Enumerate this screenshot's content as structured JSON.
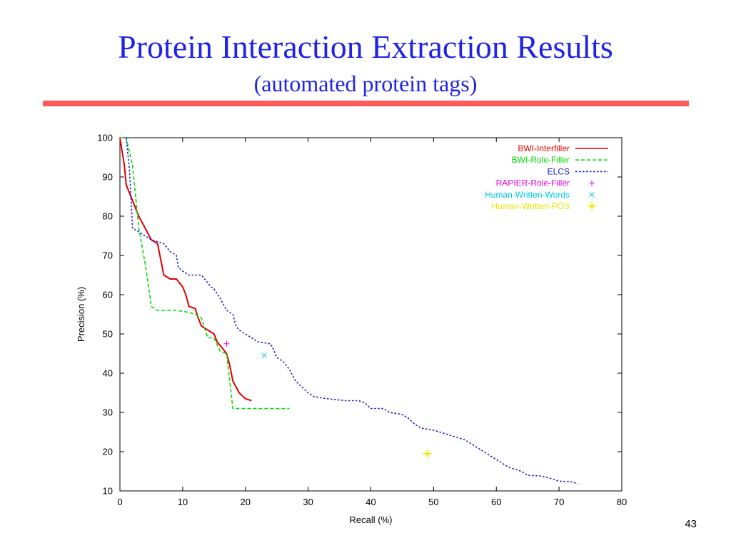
{
  "slide": {
    "title": "Protein Interaction Extraction Results",
    "subtitle": "(automated protein tags)",
    "page_number": "43",
    "title_color": "#1f23e6",
    "divider_color": "#ff5b5b"
  },
  "chart_data": {
    "type": "line",
    "title": "",
    "xlabel": "Recall (%)",
    "ylabel": "Precision (%)",
    "xlim": [
      0,
      80
    ],
    "ylim": [
      10,
      100
    ],
    "x_ticks": [
      0,
      10,
      20,
      30,
      40,
      50,
      60,
      70,
      80
    ],
    "y_ticks": [
      10,
      20,
      30,
      40,
      50,
      60,
      70,
      80,
      90,
      100
    ],
    "grid": false,
    "legend_position": "top-right",
    "series": [
      {
        "name": "BWI-Interfiller",
        "kind": "line",
        "style": "solid",
        "color": "#e00000",
        "points": [
          [
            0,
            100
          ],
          [
            0.3,
            97
          ],
          [
            0.7,
            93
          ],
          [
            1,
            88
          ],
          [
            1.5,
            86
          ],
          [
            2,
            84
          ],
          [
            3,
            80
          ],
          [
            4,
            77
          ],
          [
            5,
            74
          ],
          [
            6,
            73
          ],
          [
            6.5,
            69
          ],
          [
            7,
            65
          ],
          [
            8,
            64
          ],
          [
            9,
            64
          ],
          [
            10,
            62
          ],
          [
            10.5,
            60
          ],
          [
            11,
            57
          ],
          [
            12,
            56.5
          ],
          [
            12.5,
            54
          ],
          [
            13,
            52
          ],
          [
            14,
            51
          ],
          [
            15,
            50
          ],
          [
            15.5,
            48
          ],
          [
            16,
            47
          ],
          [
            17,
            45
          ],
          [
            17.5,
            42
          ],
          [
            18,
            38
          ],
          [
            19,
            35
          ],
          [
            20,
            33.5
          ],
          [
            21,
            33
          ]
        ]
      },
      {
        "name": "BWI-Role-Filler",
        "kind": "line",
        "style": "dashed",
        "color": "#00dd00",
        "points": [
          [
            0,
            100
          ],
          [
            1,
            100
          ],
          [
            2,
            93
          ],
          [
            2.5,
            85
          ],
          [
            3,
            77
          ],
          [
            4,
            68
          ],
          [
            4.5,
            63
          ],
          [
            5,
            57
          ],
          [
            6,
            56
          ],
          [
            8,
            56
          ],
          [
            9,
            56
          ],
          [
            11,
            55.5
          ],
          [
            12,
            55
          ],
          [
            13,
            54
          ],
          [
            14,
            49
          ],
          [
            15,
            49
          ],
          [
            16,
            45.5
          ],
          [
            17,
            45
          ],
          [
            18,
            31
          ],
          [
            22,
            31
          ],
          [
            27,
            31
          ]
        ]
      },
      {
        "name": "ELCS",
        "kind": "line",
        "style": "dotted",
        "color": "#1a1acc",
        "points": [
          [
            1,
            100
          ],
          [
            1.5,
            92
          ],
          [
            1.8,
            84
          ],
          [
            2,
            77
          ],
          [
            3,
            76
          ],
          [
            5,
            74
          ],
          [
            7,
            73
          ],
          [
            8,
            71
          ],
          [
            9,
            70
          ],
          [
            9.3,
            67
          ],
          [
            10,
            66
          ],
          [
            11,
            65
          ],
          [
            13,
            65
          ],
          [
            14,
            63
          ],
          [
            14.5,
            62
          ],
          [
            15,
            61.5
          ],
          [
            16,
            59
          ],
          [
            17,
            56
          ],
          [
            18,
            55
          ],
          [
            18.5,
            52
          ],
          [
            19,
            51
          ],
          [
            20,
            50
          ],
          [
            21,
            49
          ],
          [
            22,
            48
          ],
          [
            24,
            47.5
          ],
          [
            24.5,
            46
          ],
          [
            25,
            44
          ],
          [
            26,
            43
          ],
          [
            27,
            41
          ],
          [
            28,
            38
          ],
          [
            29,
            36.5
          ],
          [
            30,
            35
          ],
          [
            31,
            34
          ],
          [
            33,
            33.5
          ],
          [
            36,
            33
          ],
          [
            38,
            33
          ],
          [
            39,
            32.5
          ],
          [
            40,
            31
          ],
          [
            42,
            31
          ],
          [
            43,
            30
          ],
          [
            45,
            29.5
          ],
          [
            46,
            28.5
          ],
          [
            47,
            27
          ],
          [
            48,
            26
          ],
          [
            50,
            25.5
          ],
          [
            52,
            24.5
          ],
          [
            53,
            24
          ],
          [
            55,
            23
          ],
          [
            56,
            22
          ],
          [
            57,
            21
          ],
          [
            58,
            20
          ],
          [
            59,
            19
          ],
          [
            60,
            18
          ],
          [
            61,
            17
          ],
          [
            62,
            16
          ],
          [
            63,
            15.5
          ],
          [
            64,
            15
          ],
          [
            65,
            14
          ],
          [
            67,
            13.8
          ],
          [
            68,
            13.5
          ],
          [
            69,
            13
          ],
          [
            70,
            12.5
          ],
          [
            72,
            12.3
          ],
          [
            73,
            11.8
          ]
        ]
      },
      {
        "name": "RAPIER-Role-Filler",
        "kind": "point",
        "marker": "+",
        "color": "#e600e6",
        "points": [
          [
            17,
            47.5
          ]
        ]
      },
      {
        "name": "Human-Written-Words",
        "kind": "point",
        "marker": "x",
        "color": "#00c8e6",
        "points": [
          [
            23,
            44.5
          ]
        ]
      },
      {
        "name": "Human-Written-POS",
        "kind": "point",
        "marker": "star",
        "color": "#e6e600",
        "points": [
          [
            49,
            19.5
          ]
        ]
      }
    ]
  }
}
